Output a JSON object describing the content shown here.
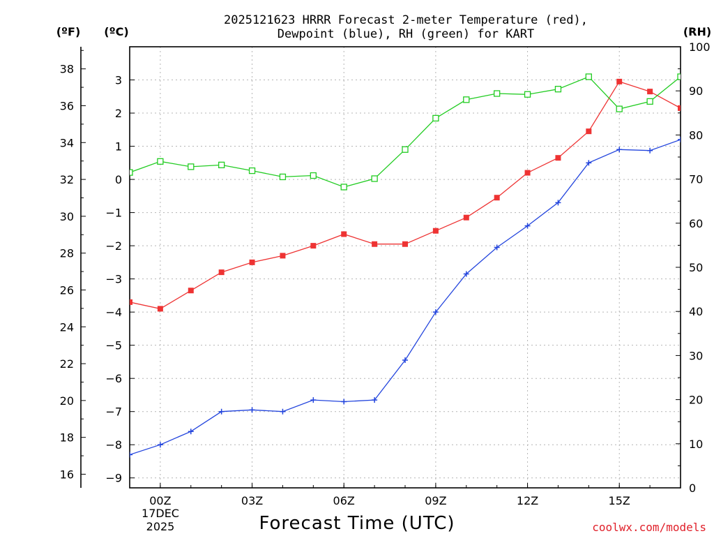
{
  "chart_data": {
    "type": "line",
    "title_line1": "2025121623 HRRR Forecast 2-meter Temperature (red),",
    "title_line2": "Dewpoint (blue), RH (green) for KART",
    "xlabel": "Forecast Time (UTC)",
    "credit": "coolwx.com/models",
    "units": {
      "fahrenheit": "(ºF)",
      "celsius": "(ºC)",
      "rh": "(RH)"
    },
    "x_hours": [
      23,
      24,
      25,
      26,
      27,
      28,
      29,
      30,
      31,
      32,
      33,
      34,
      35,
      36,
      37,
      38,
      39,
      40,
      41
    ],
    "xlim": [
      23,
      41
    ],
    "x_ticks": [
      {
        "hour": 24,
        "label": "00Z"
      },
      {
        "hour": 27,
        "label": "03Z"
      },
      {
        "hour": 30,
        "label": "06Z"
      },
      {
        "hour": 33,
        "label": "09Z"
      },
      {
        "hour": 36,
        "label": "12Z"
      },
      {
        "hour": 39,
        "label": "15Z"
      }
    ],
    "date_label_line1": "17DEC",
    "date_label_line2": "2025",
    "celsius_ticks": [
      "3",
      "2",
      "1",
      "0",
      "−1",
      "−2",
      "−3",
      "−4",
      "−5",
      "−6",
      "−7",
      "−8",
      "−9"
    ],
    "celsius_tick_values": [
      3,
      2,
      1,
      0,
      -1,
      -2,
      -3,
      -4,
      -5,
      -6,
      -7,
      -8,
      -9
    ],
    "ylim_celsius": [
      -9.3,
      4.0
    ],
    "fahrenheit_ticks": [
      "38",
      "36",
      "34",
      "32",
      "30",
      "28",
      "26",
      "24",
      "22",
      "20",
      "18",
      "16"
    ],
    "fahrenheit_tick_values": [
      38,
      36,
      34,
      32,
      30,
      28,
      26,
      24,
      22,
      20,
      18,
      16
    ],
    "rh_ticks": [
      "100",
      "90",
      "80",
      "70",
      "60",
      "50",
      "40",
      "30",
      "20",
      "10",
      "0"
    ],
    "rh_tick_values": [
      100,
      90,
      80,
      70,
      60,
      50,
      40,
      30,
      20,
      10,
      0
    ],
    "ylim_rh": [
      0,
      100
    ],
    "series": [
      {
        "name": "Temperature",
        "axis": "celsius",
        "color": "#ee3333",
        "marker": "filled-square",
        "values": [
          -3.7,
          -3.9,
          -3.35,
          -2.8,
          -2.5,
          -2.3,
          -2.0,
          -1.65,
          -1.95,
          -1.95,
          -1.55,
          -1.15,
          -0.55,
          0.2,
          0.65,
          1.45,
          2.95,
          2.65,
          2.15
        ]
      },
      {
        "name": "Dewpoint",
        "axis": "celsius",
        "color": "#2244dd",
        "marker": "plus",
        "values": [
          -8.3,
          -8.0,
          -7.6,
          -7.0,
          -6.95,
          -7.0,
          -6.65,
          -6.7,
          -6.65,
          -5.45,
          -4.0,
          -2.85,
          -2.05,
          -1.4,
          -0.7,
          0.5,
          0.9,
          0.87,
          1.2
        ]
      },
      {
        "name": "RH",
        "axis": "rh",
        "color": "#22cc22",
        "marker": "open-square",
        "values": [
          71.5,
          74.0,
          72.8,
          73.2,
          71.9,
          70.5,
          70.8,
          68.2,
          70.1,
          76.7,
          83.8,
          88.0,
          89.4,
          89.2,
          90.4,
          93.2,
          85.9,
          87.6,
          93.2
        ]
      }
    ]
  }
}
